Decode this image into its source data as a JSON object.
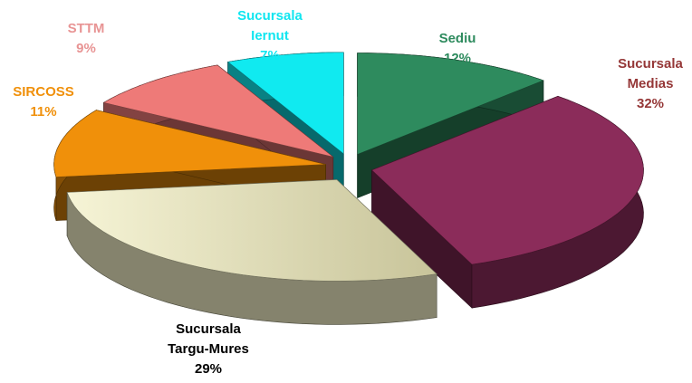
{
  "chart_data": {
    "type": "pie3d",
    "categories": [
      "Sediu",
      "Sucursala Medias",
      "Sucursala Targu-Mures",
      "SIRCOSS",
      "STTM",
      "Sucursala Iernut"
    ],
    "values": [
      12,
      32,
      29,
      11,
      9,
      7
    ],
    "value_labels": [
      "12%",
      "32%",
      "29%",
      "11%",
      "9%",
      "7%"
    ],
    "colors": [
      "#2e8b5e",
      "#8b2c5a",
      "#f1efc6",
      "#f0900a",
      "#ee7a78",
      "#10eaf0"
    ],
    "label_colors": [
      "#2e8b5e",
      "#953737",
      "#000000",
      "#f0900a",
      "#e89494",
      "#10e6f0"
    ]
  }
}
